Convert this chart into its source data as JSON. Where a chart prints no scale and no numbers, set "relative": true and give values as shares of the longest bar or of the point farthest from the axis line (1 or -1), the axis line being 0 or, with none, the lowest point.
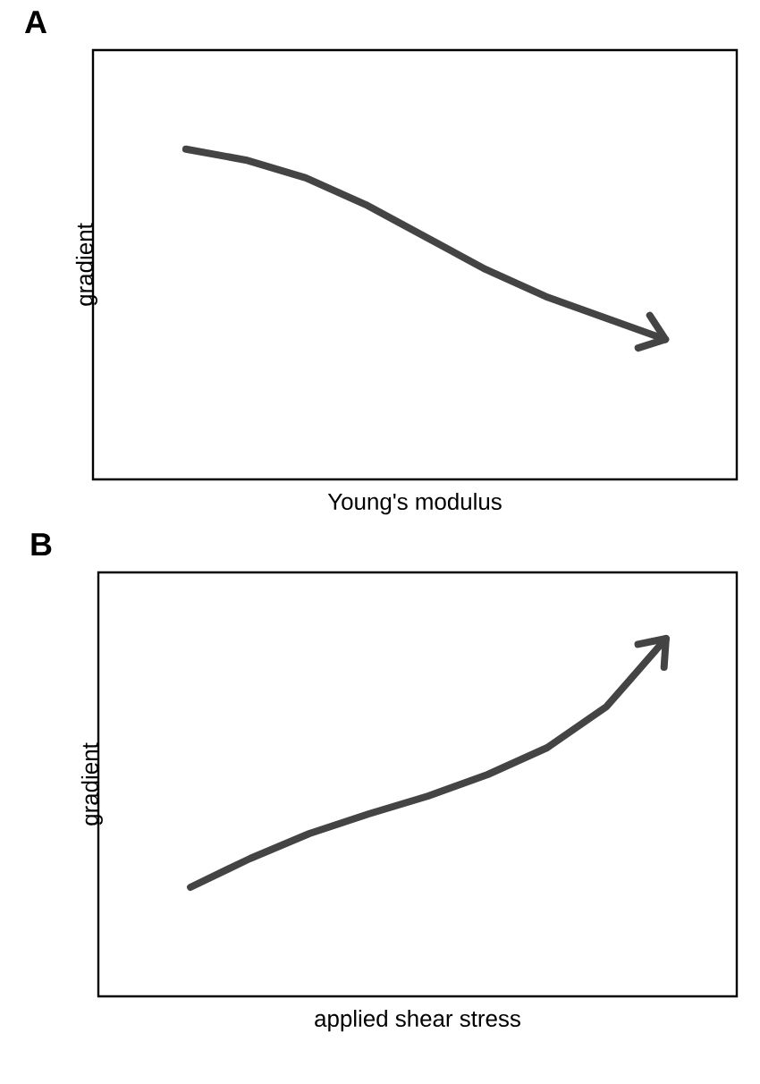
{
  "chart_data": [
    {
      "type": "line",
      "title": "A",
      "xlabel": "Young's modulus",
      "ylabel": "gradient",
      "relative": true,
      "color": "#444444",
      "marker": "none",
      "line_style": "solid",
      "categories": [
        null,
        null,
        null,
        null,
        null,
        null,
        null,
        null,
        null
      ],
      "values": [
        1,
        0.967,
        0.913,
        0.832,
        0.734,
        0.636,
        0.554,
        0.489,
        0.424
      ]
    },
    {
      "type": "line",
      "title": "B",
      "xlabel": "applied shear stress",
      "ylabel": "gradient",
      "relative": true,
      "color": "#444444",
      "marker": "none",
      "line_style": "solid",
      "categories": [
        null,
        null,
        null,
        null,
        null,
        null,
        null,
        null,
        null
      ],
      "values": [
        0.305,
        0.385,
        0.455,
        0.51,
        0.56,
        0.62,
        0.695,
        0.81,
        1
      ]
    }
  ]
}
